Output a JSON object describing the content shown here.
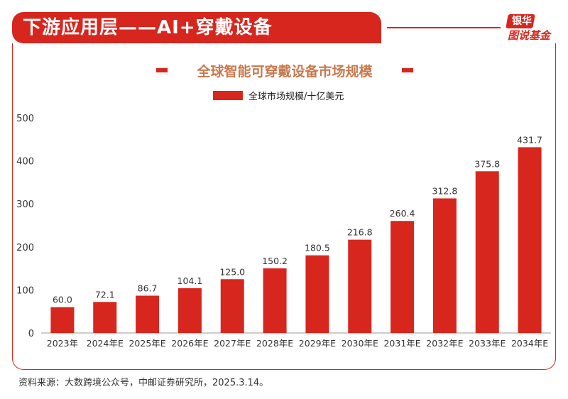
{
  "header": {
    "title": "下游应用层——AI+穿戴设备"
  },
  "logo": {
    "top": "银华",
    "bottom": "图说基金"
  },
  "colors": {
    "accent": "#d7261e",
    "title_text": "#c8794e"
  },
  "chart_data": {
    "type": "bar",
    "title": "全球智能可穿戴设备市场规模",
    "legend": "全球市场规模/十亿美元",
    "legend_position": "top-center",
    "categories": [
      "2023年",
      "2024年E",
      "2025年E",
      "2026年E",
      "2027年E",
      "2028年E",
      "2029年E",
      "2030年E",
      "2031年E",
      "2032年E",
      "2033年E",
      "2034年E"
    ],
    "values": [
      60.0,
      72.1,
      86.7,
      104.1,
      125.0,
      150.2,
      180.5,
      216.8,
      260.4,
      312.8,
      375.8,
      431.7
    ],
    "value_labels": [
      "60.0",
      "72.1",
      "86.7",
      "104.1",
      "125.0",
      "150.2",
      "180.5",
      "216.8",
      "260.4",
      "312.8",
      "375.8",
      "431.7"
    ],
    "yticks": [
      "0",
      "100",
      "200",
      "300",
      "400",
      "500"
    ],
    "ylim": [
      0,
      500
    ],
    "grid": false
  },
  "source": "资料来源：大数跨境公众号，中邮证券研究所，2025.3.14。"
}
